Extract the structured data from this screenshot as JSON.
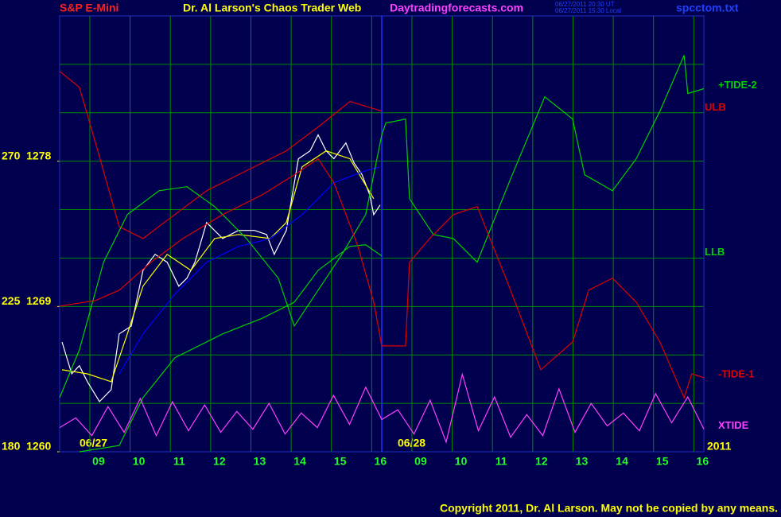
{
  "chart_data": {
    "type": "line",
    "symbol": "S&P E-Mini",
    "title": "Dr. Al Larson's Chaos Trader Web",
    "site": "Daytradingforecasts.com",
    "timestamps": [
      "06/27/2011 20:30 UT",
      "06/27/2011 15:30 Local"
    ],
    "file": "spcctom.txt",
    "date_labels": [
      "06/27",
      "06/28"
    ],
    "year_label": "2011",
    "copyright": "Copyright 2011, Dr. Al Larson. May not be copied by any means.",
    "xlim": [
      0,
      16
    ],
    "ylim": [
      1260,
      1287
    ],
    "xticks": [
      {
        "value": 0.75,
        "label": "09"
      },
      {
        "value": 1.75,
        "label": "10"
      },
      {
        "value": 2.75,
        "label": "11"
      },
      {
        "value": 3.75,
        "label": "12"
      },
      {
        "value": 4.75,
        "label": "13"
      },
      {
        "value": 5.75,
        "label": "14"
      },
      {
        "value": 6.75,
        "label": "15"
      },
      {
        "value": 7.75,
        "label": "16"
      },
      {
        "value": 8.75,
        "label": "09"
      },
      {
        "value": 9.75,
        "label": "10"
      },
      {
        "value": 10.75,
        "label": "11"
      },
      {
        "value": 11.75,
        "label": "12"
      },
      {
        "value": 12.75,
        "label": "13"
      },
      {
        "value": 13.75,
        "label": "14"
      },
      {
        "value": 14.75,
        "label": "15"
      },
      {
        "value": 15.75,
        "label": "16"
      }
    ],
    "yticks": [
      {
        "value": 1260,
        "label": "180  1260"
      },
      {
        "value": 1269,
        "label": "225  1269"
      },
      {
        "value": 1278,
        "label": "270  1278"
      }
    ],
    "ygrid": [
      1260,
      1263,
      1266,
      1269,
      1272,
      1275,
      1278,
      1281,
      1284,
      1287
    ],
    "divider": 8,
    "grid": true,
    "series": [
      {
        "color": "#ffffff",
        "x": [
          0.06,
          0.3,
          0.49,
          0.69,
          0.99,
          1.28,
          1.48,
          1.78,
          2.07,
          2.37,
          2.67,
          2.96,
          3.16,
          3.36,
          3.65,
          4.05,
          4.44,
          4.84,
          5.14,
          5.33,
          5.63,
          5.93,
          6.22,
          6.42,
          6.62,
          6.81,
          7.11,
          7.31,
          7.51,
          7.7,
          7.8,
          7.96
        ],
        "values": [
          1266.8,
          1264.83,
          1265.33,
          1264.34,
          1263.11,
          1263.85,
          1267.3,
          1267.79,
          1271.24,
          1272.23,
          1271.74,
          1270.26,
          1270.75,
          1271.74,
          1274.2,
          1273.21,
          1273.71,
          1273.71,
          1273.46,
          1272.23,
          1273.71,
          1278.15,
          1278.64,
          1279.63,
          1278.64,
          1278.15,
          1279.13,
          1277.9,
          1277.16,
          1275.93,
          1274.69,
          1275.29
        ]
      },
      {
        "color": "#ffff00",
        "x": [
          0.06,
          0.69,
          1.28,
          1.68,
          2.07,
          2.67,
          3.26,
          3.85,
          4.44,
          5.23,
          5.63,
          6.02,
          6.62,
          7.21,
          7.8
        ],
        "values": [
          1265.08,
          1264.83,
          1264.34,
          1267.3,
          1270.26,
          1272.23,
          1271.24,
          1273.21,
          1273.46,
          1273.21,
          1274.2,
          1277.65,
          1278.64,
          1278.15,
          1275.68
        ]
      },
      {
        "color": "#0000ff",
        "x": [
          1.48,
          2.07,
          2.86,
          3.65,
          4.44,
          5.23,
          6.02,
          6.81,
          7.6,
          7.96
        ],
        "values": [
          1264.83,
          1267.3,
          1269.76,
          1271.74,
          1272.72,
          1273.21,
          1274.69,
          1276.67,
          1277.41,
          1277.65
        ]
      },
      {
        "name": "ULB",
        "color": "#e00000",
        "x": [
          0,
          0.49,
          0.89,
          1.48,
          2.07,
          2.86,
          3.65,
          4.64,
          5.63,
          6.42,
          7.21,
          8.0
        ],
        "values": [
          1283.57,
          1282.58,
          1279.13,
          1273.95,
          1273.21,
          1274.69,
          1276.17,
          1277.41,
          1278.64,
          1280.12,
          1281.7,
          1281.1
        ]
      },
      {
        "name": "+TIDE-2",
        "color": "#00d000",
        "x": [
          0,
          0.49,
          1.09,
          1.68,
          2.47,
          3.16,
          3.85,
          4.64,
          5.43,
          5.83,
          6.42,
          7.01,
          7.6,
          8.0,
          8.1,
          8.59,
          8.69,
          9.28,
          9.78,
          10.37,
          11.16,
          12.05,
          12.74,
          13.04,
          13.73,
          14.32,
          14.91,
          15.51,
          15.6,
          16.0
        ],
        "values": [
          1263.35,
          1266.31,
          1271.74,
          1274.69,
          1276.17,
          1276.42,
          1275.19,
          1273.21,
          1270.75,
          1267.79,
          1270.01,
          1272.23,
          1274.69,
          1279.63,
          1280.36,
          1280.61,
          1275.68,
          1273.46,
          1273.21,
          1271.74,
          1276.67,
          1281.99,
          1280.61,
          1277.16,
          1276.17,
          1278.15,
          1281.1,
          1284.56,
          1282.19,
          1282.49
        ]
      },
      {
        "name": "LLB",
        "color": "#00d000",
        "x": [
          0.49,
          1.48,
          2.07,
          2.86,
          4.05,
          5.04,
          5.83,
          6.42,
          7.21,
          7.6,
          8.0
        ],
        "values": [
          1260,
          1260.39,
          1263.35,
          1265.82,
          1267.3,
          1268.28,
          1269.27,
          1271.24,
          1272.72,
          1272.82,
          1272.13
        ]
      },
      {
        "name": "-TIDE-1",
        "color": "#e00000",
        "x": [
          0,
          0.89,
          1.48,
          2.27,
          3.06,
          4.05,
          5.04,
          5.83,
          6.42,
          6.81,
          7.41,
          7.8,
          8.0,
          8.59,
          8.69,
          9.19,
          9.78,
          10.37,
          11.16,
          11.95,
          12.74,
          13.14,
          13.73,
          14.32,
          14.91,
          15.51,
          15.7,
          16.0
        ],
        "values": [
          1269.02,
          1269.37,
          1270.01,
          1271.74,
          1273.21,
          1274.69,
          1275.93,
          1277.16,
          1278.15,
          1276.67,
          1272.72,
          1269.27,
          1266.56,
          1266.56,
          1271.74,
          1273.21,
          1274.69,
          1275.19,
          1270.26,
          1265.08,
          1266.8,
          1270.01,
          1270.75,
          1269.27,
          1266.8,
          1263.35,
          1264.83,
          1264.59
        ]
      },
      {
        "name": "XTIDE",
        "color": "#ff40ff",
        "x": [
          0,
          0.4,
          0.8,
          1.2,
          1.6,
          2,
          2.4,
          2.8,
          3.2,
          3.6,
          4,
          4.4,
          4.8,
          5.2,
          5.6,
          6,
          6.4,
          6.8,
          7.2,
          7.6,
          8,
          8.4,
          8.8,
          9.2,
          9.6,
          10,
          10.4,
          10.8,
          11.2,
          11.6,
          12,
          12.4,
          12.8,
          13.2,
          13.6,
          14,
          14.4,
          14.8,
          15.2,
          15.6,
          16
        ],
        "values": [
          1261.5,
          1262.1,
          1261.0,
          1262.8,
          1261.2,
          1263.3,
          1261.0,
          1263.1,
          1261.3,
          1262.9,
          1261.2,
          1262.5,
          1261.4,
          1263.0,
          1261.1,
          1262.4,
          1261.5,
          1263.5,
          1261.7,
          1264.0,
          1262.0,
          1262.6,
          1261.1,
          1263.2,
          1260.6,
          1264.8,
          1261.3,
          1263.4,
          1260.9,
          1262.3,
          1261.0,
          1263.9,
          1261.2,
          1263.0,
          1261.6,
          1262.4,
          1261.3,
          1263.6,
          1261.8,
          1263.4,
          1261.4
        ]
      }
    ]
  }
}
